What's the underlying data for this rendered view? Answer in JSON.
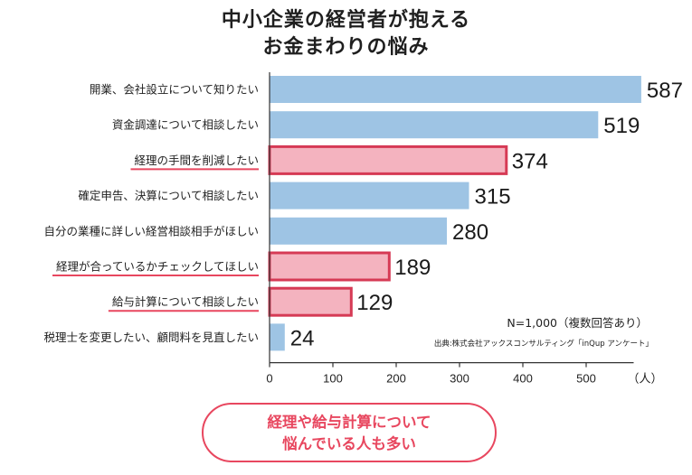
{
  "title": {
    "line1": "中小企業の経営者が抱える",
    "line2": "お金まわりの悩み"
  },
  "chart_data": {
    "type": "bar",
    "orientation": "horizontal",
    "categories": [
      "開業、会社設立について知りたい",
      "資金調達について相談したい",
      "経理の手間を削減したい",
      "確定申告、決算について相談したい",
      "自分の業種に詳しい経営相談相手がほしい",
      "経理が合っているかチェックしてほしい",
      "給与計算について相談したい",
      "税理士を変更したい、顧問料を見直したい"
    ],
    "values": [
      587,
      519,
      374,
      315,
      280,
      189,
      129,
      24
    ],
    "highlighted": [
      false,
      false,
      true,
      false,
      false,
      true,
      true,
      false
    ],
    "xlim": [
      0,
      575
    ],
    "xticks": [
      0,
      100,
      200,
      300,
      400,
      500
    ],
    "xunit": "（人）",
    "colors": {
      "bar": "#9ec4e4",
      "highlight_fill": "#f4b3bf",
      "highlight_border": "#d63a55",
      "accent": "#e8475f"
    }
  },
  "note": "N=1,000（複数回答あり）",
  "source": "出典:株式会社アックスコンサルティング「inQup アンケート」",
  "callout": {
    "line1": "経理や給与計算について",
    "line2": "悩んでいる人も多い"
  }
}
